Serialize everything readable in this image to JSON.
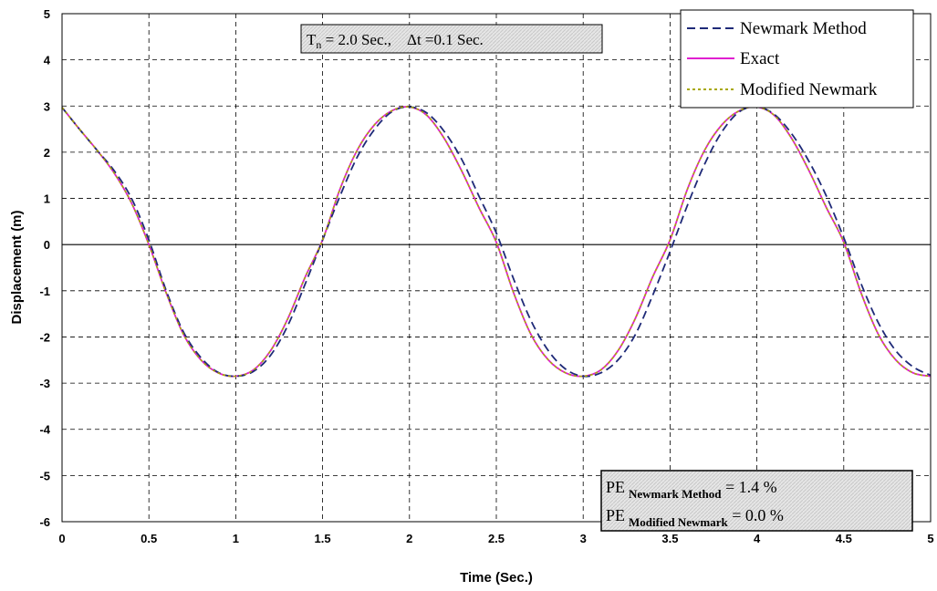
{
  "chart_data": {
    "type": "line",
    "xlabel": "Time (Sec.)",
    "ylabel": "Displacement (m)",
    "xlim": [
      0,
      5
    ],
    "ylim": [
      -6,
      5
    ],
    "x_ticks": [
      "0",
      "0.5",
      "1",
      "1.5",
      "2",
      "2.5",
      "3",
      "3.5",
      "4",
      "4.5",
      "5"
    ],
    "y_ticks": [
      "5",
      "4",
      "3",
      "2",
      "1",
      "0",
      "-1",
      "-2",
      "-3",
      "-4",
      "-5",
      "-6"
    ],
    "grid": true,
    "legend_position": "top-right",
    "x": [
      0,
      0.1,
      0.2,
      0.3,
      0.4,
      0.5,
      0.6,
      0.7,
      0.8,
      0.9,
      1.0,
      1.1,
      1.2,
      1.3,
      1.4,
      1.5,
      1.6,
      1.7,
      1.8,
      1.9,
      2.0,
      2.1,
      2.2,
      2.3,
      2.4,
      2.5,
      2.6,
      2.7,
      2.8,
      2.9,
      3.0,
      3.1,
      3.2,
      3.3,
      3.4,
      3.5,
      3.6,
      3.7,
      3.8,
      3.9,
      4.0,
      4.1,
      4.2,
      4.3,
      4.4,
      4.5,
      4.6,
      4.7,
      4.8,
      4.9,
      5.0
    ],
    "series": [
      {
        "name": "Newmark Method",
        "color": "#1f2a78",
        "dash": "dashed",
        "values": [
          2.97,
          2.5,
          2.05,
          1.6,
          1.0,
          0.1,
          -1.0,
          -1.9,
          -2.45,
          -2.77,
          -2.85,
          -2.75,
          -2.4,
          -1.75,
          -0.85,
          0.1,
          1.05,
          1.9,
          2.5,
          2.88,
          2.98,
          2.85,
          2.45,
          1.85,
          1.05,
          0.25,
          -0.75,
          -1.65,
          -2.3,
          -2.7,
          -2.85,
          -2.78,
          -2.5,
          -1.95,
          -1.1,
          -0.15,
          0.85,
          1.75,
          2.45,
          2.88,
          2.98,
          2.82,
          2.4,
          1.8,
          1.05,
          0.15,
          -0.85,
          -1.7,
          -2.3,
          -2.65,
          -2.83
        ]
      },
      {
        "name": "Exact",
        "color": "#e020d0",
        "dash": "solid",
        "values": [
          2.97,
          2.5,
          2.05,
          1.55,
          0.9,
          0.0,
          -1.05,
          -1.95,
          -2.5,
          -2.78,
          -2.85,
          -2.72,
          -2.3,
          -1.6,
          -0.7,
          0.1,
          1.2,
          2.05,
          2.6,
          2.9,
          2.98,
          2.8,
          2.3,
          1.6,
          0.8,
          0.05,
          -1.05,
          -1.95,
          -2.5,
          -2.78,
          -2.85,
          -2.72,
          -2.3,
          -1.6,
          -0.7,
          0.1,
          1.2,
          2.05,
          2.6,
          2.9,
          2.98,
          2.8,
          2.3,
          1.6,
          0.8,
          0.05,
          -1.05,
          -1.95,
          -2.5,
          -2.78,
          -2.85
        ]
      },
      {
        "name": "Modified Newmark",
        "color": "#a8a800",
        "dash": "dotted",
        "values": [
          2.97,
          2.5,
          2.05,
          1.55,
          0.9,
          0.0,
          -1.05,
          -1.95,
          -2.5,
          -2.78,
          -2.85,
          -2.72,
          -2.3,
          -1.6,
          -0.7,
          0.1,
          1.2,
          2.05,
          2.6,
          2.9,
          2.98,
          2.8,
          2.3,
          1.6,
          0.8,
          0.05,
          -1.05,
          -1.95,
          -2.5,
          -2.78,
          -2.85,
          -2.72,
          -2.3,
          -1.6,
          -0.7,
          0.1,
          1.2,
          2.05,
          2.6,
          2.9,
          2.98,
          2.8,
          2.3,
          1.6,
          0.8,
          0.05,
          -1.05,
          -1.95,
          -2.5,
          -2.78,
          -2.85
        ]
      }
    ],
    "annotations": {
      "params": {
        "t_label": "T",
        "t_sub": "n",
        "t_value": " = 2.0 Sec.,    Δt =0.1 Sec."
      },
      "pe": [
        {
          "prefix": "PE",
          "sub": "Newmark Method",
          "value": " = 1.4 %"
        },
        {
          "prefix": "PE",
          "sub": "Modified Newmark",
          "value": " = 0.0 %"
        }
      ]
    }
  }
}
